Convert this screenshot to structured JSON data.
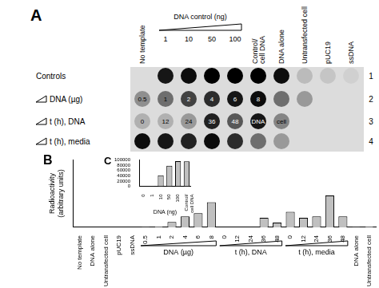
{
  "panel_a": {
    "title": "A",
    "column_headers": [
      "No template",
      null,
      null,
      null,
      null,
      "Control/cell DNA",
      "DNA alone",
      "Untransfected cell",
      "pUC19",
      "ssDNA"
    ],
    "column_group": {
      "label": "DNA control (ng)",
      "first": 1,
      "last": 4,
      "labels": [
        "1",
        "10",
        "50",
        "100"
      ]
    },
    "rows": [
      {
        "number": 1,
        "label": "Controls",
        "ramp": false,
        "signal": [
          0,
          0.9,
          0.95,
          1,
          1,
          1,
          0.95,
          0.15,
          0.1,
          0.05
        ]
      },
      {
        "number": 2,
        "label": "DNA (µg)",
        "ramp": true,
        "signal": [
          0.35,
          0.5,
          0.7,
          0.8,
          0.9,
          0.95,
          0.5,
          0.3
        ],
        "spot_labels": [
          "0.5",
          "1",
          "2",
          "4",
          "6",
          "8",
          null,
          null
        ]
      },
      {
        "number": 3,
        "label": "t (h), DNA",
        "ramp": true,
        "signal": [
          0.2,
          0.2,
          0.3,
          0.85,
          0.6,
          0.9,
          0.4
        ],
        "spot_labels": [
          "0",
          "12",
          "24",
          "36",
          "48",
          "DNA",
          "cell"
        ]
      },
      {
        "number": 4,
        "label": "t (h), media",
        "ramp": true,
        "signal": [
          0.95,
          0.9,
          0.85,
          0.95,
          0.8,
          0.5,
          0.3
        ]
      }
    ]
  },
  "chart_data": [
    {
      "type": "bar",
      "title": "B",
      "categories": [
        "No template",
        "DNA alone",
        "Untransfected cell",
        "pUC19",
        "ssDNA",
        "0.5",
        "1",
        "2",
        "4",
        "6",
        "8",
        "0",
        "12",
        "24",
        "36",
        "48",
        "0",
        "12",
        "24",
        "36",
        "48",
        "DNA alone",
        "Untransfected cell"
      ],
      "values": [
        0,
        0,
        0,
        0,
        0,
        0.5,
        1,
        8,
        16,
        21,
        37,
        0,
        0,
        0,
        14,
        7,
        23,
        14,
        16,
        47,
        16,
        0.5,
        1
      ],
      "color": "#c0c0c0",
      "ylim": [
        0,
        100
      ],
      "tick_labels": "x",
      "grid": false,
      "ylabel": "Radioactivity (arbitrary units)",
      "category_groups": [
        {
          "label": "DNA (µg)",
          "first": 5,
          "last": 10
        },
        {
          "label": "t (h), DNA",
          "first": 11,
          "last": 15
        },
        {
          "label": "t (h), media",
          "first": 16,
          "last": 20
        }
      ]
    },
    {
      "type": "bar",
      "title": "C",
      "categories": [
        "0",
        "1",
        "10",
        "50",
        "100",
        "Control/cell DNA"
      ],
      "values": [
        0,
        1000,
        42000,
        78000,
        96000,
        95000
      ],
      "color": "#c0c0c0",
      "ylim": [
        0,
        100000
      ],
      "yticks": [
        0,
        20000,
        40000,
        60000,
        80000,
        100000
      ],
      "xlabel": "DNA (ng)",
      "grid": false
    }
  ]
}
